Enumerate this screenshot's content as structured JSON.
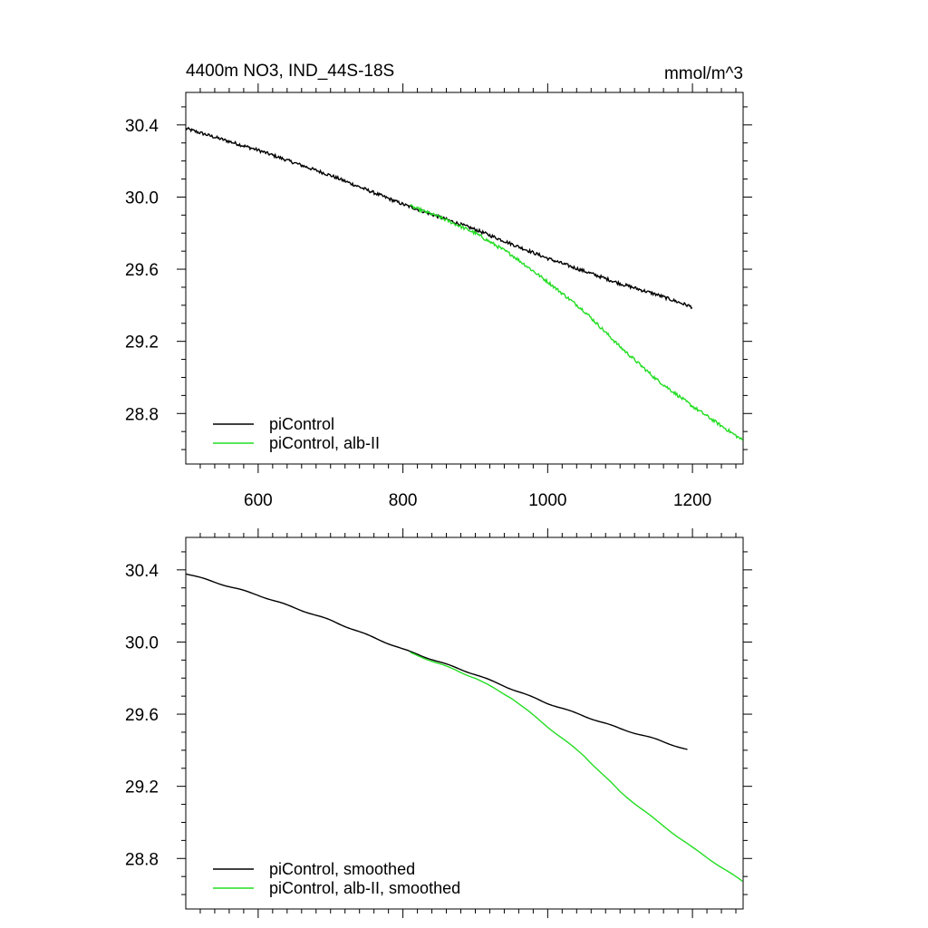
{
  "title_left": "4400m NO3, IND_44S-18S",
  "title_right": "mmol/m^3",
  "chart_data": [
    {
      "type": "line",
      "panel": "top",
      "xlim": [
        500,
        1270
      ],
      "ylim": [
        28.52,
        30.58
      ],
      "x_ticks": [
        600,
        800,
        1000,
        1200
      ],
      "x_tick_labels": [
        "600",
        "800",
        "1000",
        "1200"
      ],
      "y_ticks": [
        28.8,
        29.2,
        29.6,
        30.0,
        30.4
      ],
      "y_tick_labels": [
        "28.8",
        "29.2",
        "29.6",
        "30.0",
        "30.4"
      ],
      "grid": false,
      "legend_position": "bottom-left",
      "series": [
        {
          "name": "piControl",
          "color": "#000000",
          "noisy": true,
          "points": [
            [
              500,
              30.38
            ],
            [
              600,
              30.26
            ],
            [
              700,
              30.12
            ],
            [
              800,
              29.96
            ],
            [
              850,
              29.89
            ],
            [
              900,
              29.82
            ],
            [
              950,
              29.74
            ],
            [
              1000,
              29.66
            ],
            [
              1050,
              29.59
            ],
            [
              1100,
              29.52
            ],
            [
              1150,
              29.46
            ],
            [
              1200,
              29.39
            ]
          ]
        },
        {
          "name": "piControl, alb-II",
          "color": "#22dd22",
          "noisy": true,
          "points": [
            [
              810,
              29.95
            ],
            [
              850,
              29.89
            ],
            [
              900,
              29.8
            ],
            [
              950,
              29.68
            ],
            [
              1000,
              29.53
            ],
            [
              1050,
              29.37
            ],
            [
              1100,
              29.17
            ],
            [
              1150,
              28.99
            ],
            [
              1200,
              28.84
            ],
            [
              1270,
              28.65
            ]
          ]
        }
      ]
    },
    {
      "type": "line",
      "panel": "bottom",
      "xlim": [
        500,
        1270
      ],
      "ylim": [
        28.52,
        30.58
      ],
      "x_ticks": [
        600,
        800,
        1000,
        1200
      ],
      "y_ticks": [
        28.8,
        29.2,
        29.6,
        30.0,
        30.4
      ],
      "y_tick_labels": [
        "28.8",
        "29.2",
        "29.6",
        "30.0",
        "30.4"
      ],
      "grid": false,
      "legend_position": "bottom-left",
      "series": [
        {
          "name": "piControl, smoothed",
          "color": "#000000",
          "noisy": false,
          "points": [
            [
              500,
              30.38
            ],
            [
              600,
              30.26
            ],
            [
              700,
              30.12
            ],
            [
              800,
              29.96
            ],
            [
              850,
              29.89
            ],
            [
              900,
              29.82
            ],
            [
              950,
              29.74
            ],
            [
              1000,
              29.66
            ],
            [
              1050,
              29.59
            ],
            [
              1100,
              29.52
            ],
            [
              1150,
              29.46
            ],
            [
              1195,
              29.4
            ]
          ]
        },
        {
          "name": "piControl, alb-II, smoothed",
          "color": "#22dd22",
          "noisy": false,
          "points": [
            [
              810,
              29.94
            ],
            [
              850,
              29.88
            ],
            [
              900,
              29.8
            ],
            [
              950,
              29.69
            ],
            [
              1000,
              29.53
            ],
            [
              1050,
              29.37
            ],
            [
              1100,
              29.17
            ],
            [
              1150,
              29.01
            ],
            [
              1200,
              28.86
            ],
            [
              1270,
              28.67
            ]
          ]
        }
      ]
    }
  ]
}
